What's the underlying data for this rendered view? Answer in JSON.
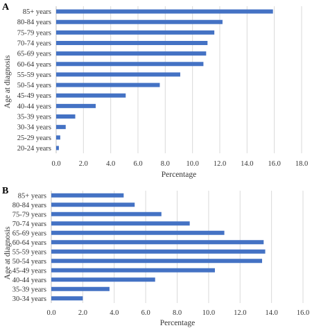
{
  "chart_data": [
    {
      "type": "bar",
      "orientation": "horizontal",
      "panel_label": "A",
      "categories": [
        "85+ years",
        "80-84 years",
        "75-79 years",
        "70-74 years",
        "65-69 years",
        "60-64 years",
        "55-59 years",
        "50-54 years",
        "45-49 years",
        "40-44 years",
        "35-39 years",
        "30-34 years",
        "25-29 years",
        "20-24 years"
      ],
      "values": [
        15.9,
        12.2,
        11.6,
        11.1,
        11.0,
        10.8,
        9.1,
        7.6,
        5.1,
        2.9,
        1.4,
        0.7,
        0.3,
        0.2
      ],
      "xlabel": "Percentage",
      "ylabel": "Age at diagnosis",
      "xlim": [
        0,
        18
      ],
      "xticks": [
        "0.0",
        "2.0",
        "4.0",
        "6.0",
        "8.0",
        "10.0",
        "12.0",
        "14.0",
        "16.0",
        "18.0"
      ],
      "bar_color": "#4472c4",
      "grid": "vertical"
    },
    {
      "type": "bar",
      "orientation": "horizontal",
      "panel_label": "B",
      "categories": [
        "85+ years",
        "80-84 years",
        "75-79 years",
        "70-74 years",
        "65-69 years",
        "60-64 years",
        "55-59 years",
        "50-54 years",
        "45-49 years",
        "40-44 years",
        "35-39 years",
        "30-34 years"
      ],
      "values": [
        4.6,
        5.3,
        7.0,
        8.8,
        11.0,
        13.5,
        13.6,
        13.4,
        10.4,
        6.6,
        3.7,
        2.0
      ],
      "xlabel": "Percentage",
      "ylabel": "Age at diagnosis",
      "xlim": [
        0,
        16
      ],
      "xticks": [
        "0.0",
        "2.0",
        "4.0",
        "6.0",
        "8.0",
        "10.0",
        "12.0",
        "14.0",
        "16.0"
      ],
      "bar_color": "#4472c4",
      "grid": "vertical"
    }
  ]
}
